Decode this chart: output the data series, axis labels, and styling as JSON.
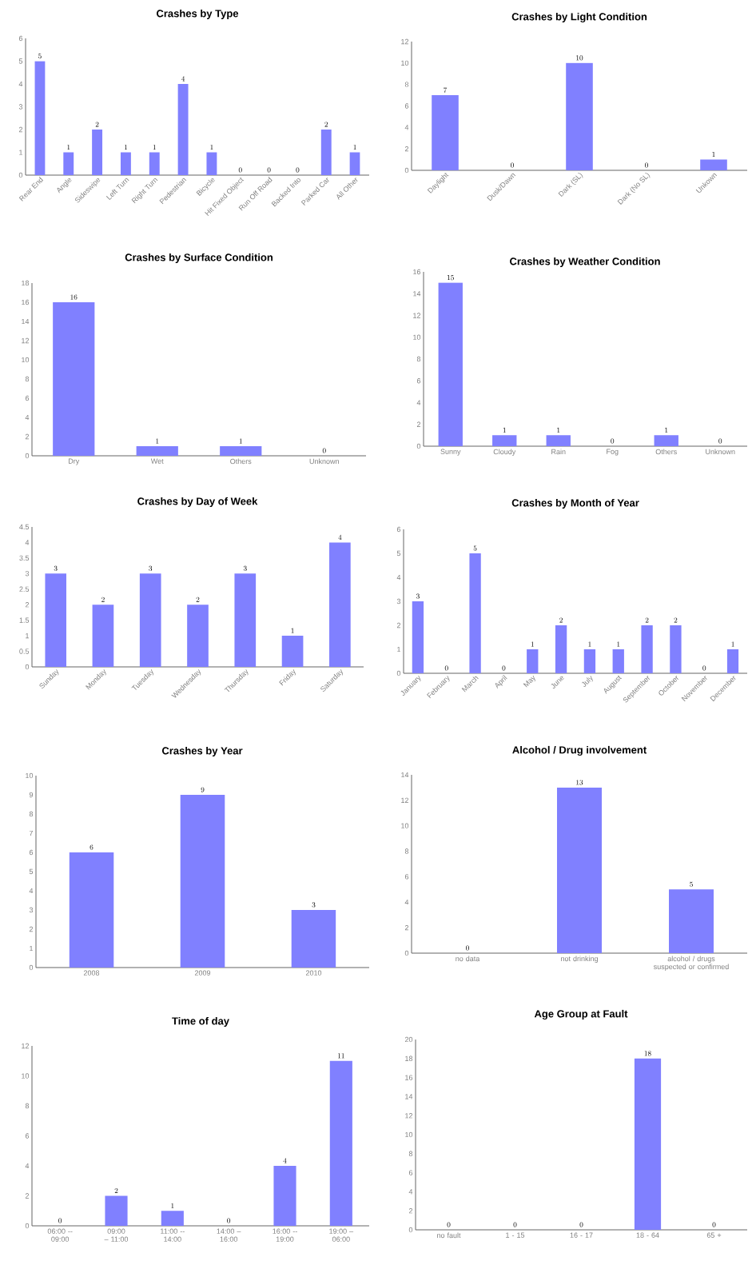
{
  "chart_data": [
    {
      "type": "bar",
      "title": "Crashes by Type",
      "categories": [
        "Rear End",
        "Angle",
        "Sideswipe",
        "Left Turn",
        "Right Turn",
        "Pedestrian",
        "Bicycle",
        "Hit Fixed Object",
        "Run Off Road",
        "Backed Into",
        "Parked Car",
        "All Other"
      ],
      "values": [
        5,
        1,
        2,
        1,
        1,
        4,
        1,
        0,
        0,
        0,
        2,
        1
      ],
      "color": "#8080ff",
      "ylim": [
        0,
        6
      ],
      "yticks": [
        0,
        1,
        2,
        3,
        4,
        5,
        6
      ],
      "data_labels": true
    },
    {
      "type": "bar",
      "title": "Crashes by Light Condition",
      "categories": [
        "Daylight",
        "Dusk/Dawn",
        "Dark (SL)",
        "Dark (No SL)",
        "Unkown"
      ],
      "values": [
        7,
        0,
        10,
        0,
        1
      ],
      "color": "#8080ff",
      "ylim": [
        0,
        12
      ],
      "yticks": [
        0,
        2,
        4,
        6,
        8,
        10,
        12
      ],
      "data_labels": true
    },
    {
      "type": "bar",
      "title": "Crashes by Surface Condition",
      "categories": [
        "Dry",
        "Wet",
        "Others",
        "Unknown"
      ],
      "values": [
        16,
        1,
        1,
        0
      ],
      "color": "#8080ff",
      "ylim": [
        0,
        18
      ],
      "yticks": [
        0,
        2,
        4,
        6,
        8,
        10,
        12,
        14,
        16,
        18
      ],
      "data_labels": true
    },
    {
      "type": "bar",
      "title": "Crashes by Weather Condition",
      "categories": [
        "Sunny",
        "Cloudy",
        "Rain",
        "Fog",
        "Others",
        "Unknown"
      ],
      "values": [
        15,
        1,
        1,
        0,
        1,
        0
      ],
      "color": "#8080ff",
      "ylim": [
        0,
        16
      ],
      "yticks": [
        0,
        2,
        4,
        6,
        8,
        10,
        12,
        14,
        16
      ],
      "data_labels": true
    },
    {
      "type": "bar",
      "title": "Crashes by Day of Week",
      "categories": [
        "Sunday",
        "Monday",
        "Tuesday",
        "Wednesday",
        "Thursday",
        "Friday",
        "Saturday"
      ],
      "values": [
        3,
        2,
        3,
        2,
        3,
        1,
        4
      ],
      "color": "#8080ff",
      "ylim": [
        0,
        4.5
      ],
      "yticks": [
        0,
        0.5,
        1,
        1.5,
        2,
        2.5,
        3,
        3.5,
        4,
        4.5
      ],
      "data_labels": true
    },
    {
      "type": "bar",
      "title": "Crashes by Month of Year",
      "categories": [
        "January",
        "February",
        "March",
        "April",
        "May",
        "June",
        "July",
        "August",
        "September",
        "October",
        "November",
        "December"
      ],
      "values": [
        3,
        0,
        5,
        0,
        1,
        2,
        1,
        1,
        2,
        2,
        0,
        1
      ],
      "color": "#8080ff",
      "ylim": [
        0,
        6
      ],
      "yticks": [
        0,
        1,
        2,
        3,
        4,
        5,
        6
      ],
      "data_labels": true
    },
    {
      "type": "bar",
      "title": "Crashes by Year",
      "categories": [
        "2008",
        "2009",
        "2010"
      ],
      "values": [
        6,
        9,
        3
      ],
      "color": "#8080ff",
      "ylim": [
        0,
        10
      ],
      "yticks": [
        0,
        1,
        2,
        3,
        4,
        5,
        6,
        7,
        8,
        9,
        10
      ],
      "data_labels": true
    },
    {
      "type": "bar",
      "title": "Alcohol / Drug involvement",
      "categories": [
        "no data",
        "not drinking",
        "alcohol / drugs suspected or confirmed"
      ],
      "values": [
        0,
        13,
        5
      ],
      "color": "#8080ff",
      "ylim": [
        0,
        14
      ],
      "yticks": [
        0,
        2,
        4,
        6,
        8,
        10,
        12,
        14
      ],
      "data_labels": true
    },
    {
      "type": "bar",
      "title": "Time of day",
      "categories": [
        "06:00 -- 09:00",
        "09:00 – 11:00",
        "11:00 -- 14:00",
        "14:00 – 16:00",
        "16:00 -- 19:00",
        "19:00 – 06:00"
      ],
      "values": [
        0,
        2,
        1,
        0,
        4,
        11
      ],
      "color": "#8080ff",
      "ylim": [
        0,
        12
      ],
      "yticks": [
        0,
        2,
        4,
        6,
        8,
        10,
        12
      ],
      "data_labels": true
    },
    {
      "type": "bar",
      "title": "Age Group at Fault",
      "categories": [
        "no fault",
        "1 - 15",
        "16 - 17",
        "18 - 64",
        "65 +"
      ],
      "values": [
        0,
        0,
        0,
        18,
        0
      ],
      "color": "#8080ff",
      "ylim": [
        0,
        20
      ],
      "yticks": [
        0,
        2,
        4,
        6,
        8,
        10,
        12,
        14,
        16,
        18,
        20
      ],
      "data_labels": true
    }
  ]
}
